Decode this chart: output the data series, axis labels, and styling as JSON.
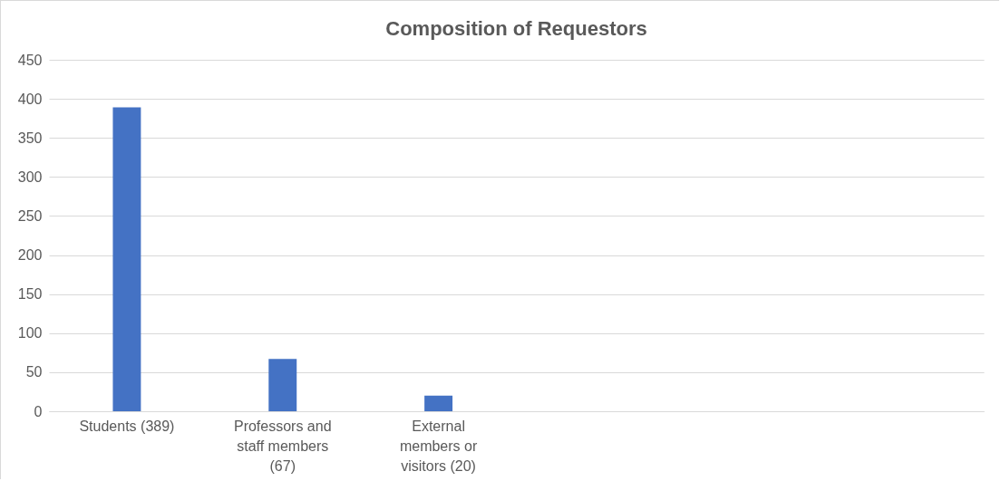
{
  "chart_data": {
    "type": "bar",
    "title": "Composition of Requestors",
    "categories": [
      "Students (389)",
      "Professors and staff members (67)",
      "External members or visitors (20)",
      null,
      null,
      null
    ],
    "values": [
      389,
      67,
      20,
      null,
      null,
      null
    ],
    "color": "#4472c4",
    "ylim": [
      0,
      450
    ],
    "yticks": [
      0,
      50,
      100,
      150,
      200,
      250,
      300,
      350,
      400,
      450
    ],
    "grid": "y"
  }
}
